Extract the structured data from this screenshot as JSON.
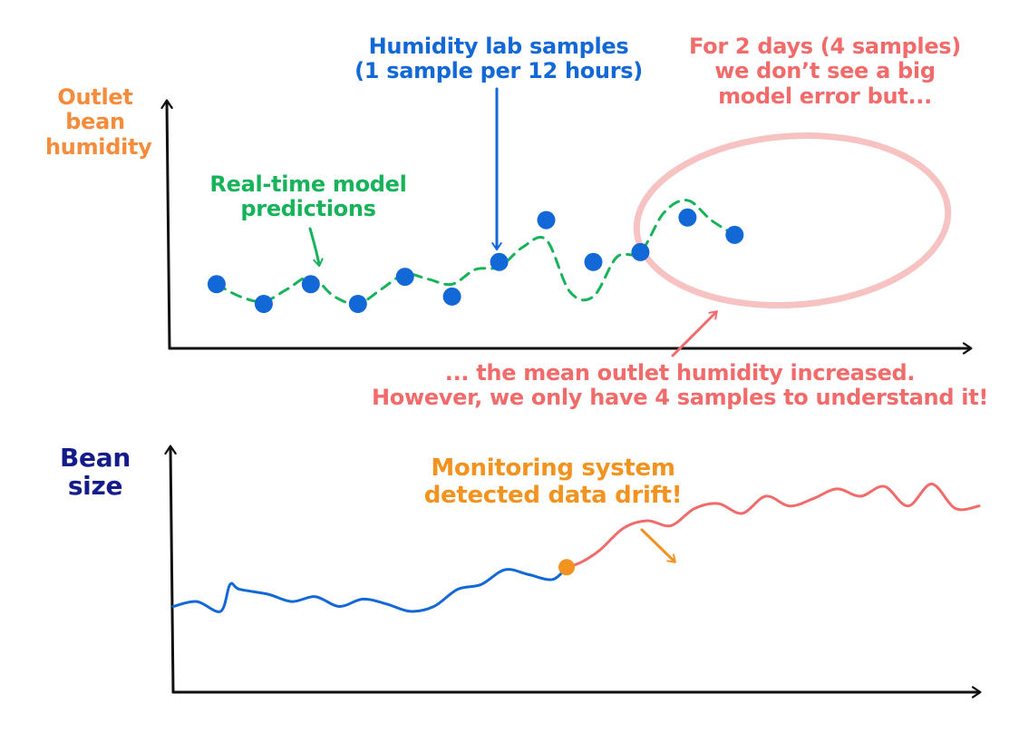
{
  "colors": {
    "axis": "#111111",
    "orange": "#f48c3c",
    "green": "#17b35a",
    "blue": "#1168d6",
    "salmon": "#f26b6b",
    "ellipse": "#f7c2c2",
    "navy": "#141c8a",
    "drift": "#f2931f"
  },
  "top_chart": {
    "y_label_lines": [
      "Outlet",
      "bean",
      "humidity"
    ],
    "lab_samples_label_lines": [
      "Humidity lab samples",
      "(1 sample per 12 hours)"
    ],
    "predictions_label_lines": [
      "Real-time model",
      "predictions"
    ],
    "error_note_lines": [
      "For 2 days (4 samples)",
      "we don’t see a big",
      "model error but..."
    ],
    "mean_note_lines": [
      "... the mean outlet humidity increased.",
      "However, we only have 4 samples to understand it!"
    ]
  },
  "bottom_chart": {
    "y_label_lines": [
      "Bean",
      "size"
    ],
    "drift_label_lines": [
      "Monitoring system",
      "detected data drift!"
    ]
  },
  "chart_data": [
    {
      "type": "scatter",
      "title": "",
      "xlabel": "",
      "ylabel": "Outlet bean humidity",
      "x_range": [
        0,
        17
      ],
      "y_range": [
        0,
        10
      ],
      "series": [
        {
          "name": "Humidity lab samples",
          "style": "dots",
          "x": [
            1,
            2,
            3,
            4,
            5,
            6,
            7,
            8,
            9,
            10,
            11,
            12
          ],
          "y": [
            2.6,
            1.8,
            2.6,
            1.8,
            2.9,
            2.1,
            3.5,
            5.2,
            3.5,
            3.9,
            5.3,
            4.6
          ]
        },
        {
          "name": "Real-time model predictions",
          "style": "dashed-line",
          "x": [
            1,
            1.5,
            2,
            2.5,
            3,
            3.5,
            4,
            4.5,
            5,
            5.5,
            6,
            6.5,
            7,
            7.5,
            8,
            8.5,
            9,
            9.5,
            10,
            10.5,
            11,
            11.5,
            12
          ],
          "y": [
            2.6,
            2.1,
            1.9,
            2.4,
            2.9,
            2.1,
            1.8,
            2.4,
            3.0,
            2.8,
            2.6,
            3.2,
            3.3,
            4.1,
            4.4,
            2.3,
            2.1,
            3.7,
            3.9,
            5.5,
            6.0,
            5.2,
            4.6
          ]
        }
      ]
    },
    {
      "type": "line",
      "title": "",
      "xlabel": "",
      "ylabel": "Bean size",
      "x_range": [
        0,
        17
      ],
      "y_range": [
        0,
        10
      ],
      "drift_point": {
        "x": 8.3,
        "y": 5.1
      },
      "series": [
        {
          "name": "Bean size (before drift)",
          "x": [
            0,
            0.5,
            1,
            1.2,
            1.4,
            2,
            2.5,
            3,
            3.5,
            4,
            4.5,
            5,
            5.5,
            6,
            6.5,
            7,
            7.5,
            8,
            8.3
          ],
          "y": [
            3.5,
            3.7,
            3.3,
            4.4,
            4.2,
            4.0,
            3.7,
            3.9,
            3.5,
            3.8,
            3.6,
            3.3,
            3.5,
            4.2,
            4.4,
            5.0,
            4.8,
            4.6,
            5.1
          ]
        },
        {
          "name": "Bean size (after drift)",
          "x": [
            8.3,
            8.6,
            9,
            9.5,
            10,
            10.5,
            11,
            11.5,
            12,
            12.5,
            13,
            13.5,
            14,
            14.5,
            15,
            15.5,
            16,
            16.5,
            17
          ],
          "y": [
            5.1,
            5.3,
            5.8,
            6.7,
            7.0,
            6.8,
            7.5,
            7.7,
            7.3,
            8.0,
            7.6,
            7.9,
            8.3,
            8.0,
            8.4,
            7.6,
            8.5,
            7.5,
            7.6
          ]
        }
      ]
    }
  ]
}
